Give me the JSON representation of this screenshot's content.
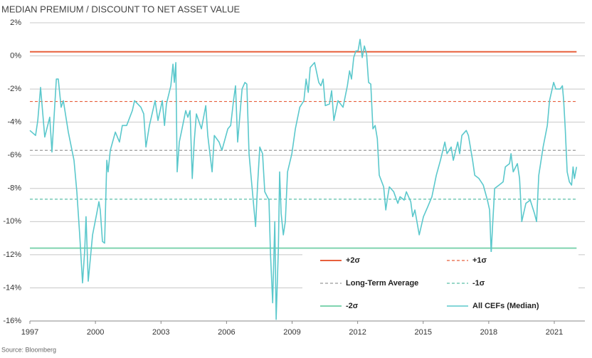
{
  "chart_data": {
    "type": "line",
    "title": "MEDIAN PREMIUM / DISCOUNT TO NET ASSET VALUE",
    "source": "Source: Bloomberg",
    "xlim": [
      1997,
      2022.4
    ],
    "xticks": [
      1997,
      2000,
      2003,
      2006,
      2009,
      2012,
      2015,
      2018,
      2021
    ],
    "ylim": [
      -16,
      2
    ],
    "yticks": [
      {
        "value": -16,
        "label": "-16%"
      },
      {
        "value": -14,
        "label": "-14%"
      },
      {
        "value": -12,
        "label": "-12%"
      },
      {
        "value": -10,
        "label": "-10%"
      },
      {
        "value": -8,
        "label": "-8%"
      },
      {
        "value": -6,
        "label": "-6%"
      },
      {
        "value": -4,
        "label": "-4%"
      },
      {
        "value": -2,
        "label": "-2%"
      },
      {
        "value": 0,
        "label": "0%"
      },
      {
        "value": 2,
        "label": "2%"
      }
    ],
    "grid": true,
    "reference_lines": [
      {
        "name": "+2σ",
        "value": 0.25,
        "color": "#e8603c",
        "dashed": false
      },
      {
        "name": "+1σ",
        "value": -2.75,
        "color": "#e8603c",
        "dashed": true
      },
      {
        "name": "Long-Term Average",
        "value": -5.7,
        "color": "#999999",
        "dashed": true
      },
      {
        "name": "-1σ",
        "value": -8.65,
        "color": "#5bbfa8",
        "dashed": true
      },
      {
        "name": "-2σ",
        "value": -11.6,
        "color": "#7fd4b0",
        "dashed": false
      }
    ],
    "series": [
      {
        "name": "All CEFs (Median)",
        "color": "#5bc8cc",
        "x": [
          1997.0,
          1997.26,
          1997.36,
          1997.49,
          1997.68,
          1997.91,
          1998.01,
          1998.21,
          1998.3,
          1998.43,
          1998.53,
          1998.76,
          1999.02,
          1999.15,
          1999.28,
          1999.41,
          1999.51,
          1999.57,
          1999.67,
          1999.87,
          2000.06,
          2000.16,
          2000.22,
          2000.32,
          2000.42,
          2000.52,
          2000.58,
          2000.68,
          2000.91,
          2001.1,
          2001.23,
          2001.43,
          2001.69,
          2001.79,
          2002.08,
          2002.21,
          2002.31,
          2002.47,
          2002.73,
          2002.86,
          2003.06,
          2003.16,
          2003.25,
          2003.45,
          2003.55,
          2003.61,
          2003.68,
          2003.74,
          2003.84,
          2004.04,
          2004.13,
          2004.23,
          2004.33,
          2004.43,
          2004.52,
          2004.62,
          2004.85,
          2005.05,
          2005.14,
          2005.34,
          2005.44,
          2005.66,
          2005.79,
          2006.06,
          2006.19,
          2006.32,
          2006.41,
          2006.51,
          2006.71,
          2006.84,
          2006.93,
          2007.03,
          2007.13,
          2007.33,
          2007.42,
          2007.52,
          2007.65,
          2007.75,
          2007.94,
          2008.01,
          2008.11,
          2008.21,
          2008.27,
          2008.37,
          2008.43,
          2008.5,
          2008.6,
          2008.69,
          2008.79,
          2008.99,
          2009.15,
          2009.35,
          2009.54,
          2009.64,
          2009.74,
          2009.83,
          2010.03,
          2010.22,
          2010.32,
          2010.42,
          2010.52,
          2010.71,
          2010.81,
          2010.91,
          2011.1,
          2011.33,
          2011.53,
          2011.63,
          2011.72,
          2011.82,
          2011.92,
          2012.02,
          2012.11,
          2012.21,
          2012.31,
          2012.41,
          2012.5,
          2012.6,
          2012.7,
          2012.8,
          2012.9,
          2012.99,
          2013.19,
          2013.29,
          2013.35,
          2013.45,
          2013.65,
          2013.84,
          2013.94,
          2014.13,
          2014.23,
          2014.43,
          2014.52,
          2014.62,
          2014.82,
          2015.01,
          2015.21,
          2015.4,
          2015.6,
          2015.79,
          2015.99,
          2016.09,
          2016.28,
          2016.38,
          2016.58,
          2016.67,
          2016.77,
          2016.97,
          2017.07,
          2017.26,
          2017.36,
          2017.55,
          2017.75,
          2017.94,
          2018.04,
          2018.11,
          2018.17,
          2018.27,
          2018.47,
          2018.66,
          2018.76,
          2018.95,
          2019.02,
          2019.12,
          2019.31,
          2019.41,
          2019.51,
          2019.7,
          2019.9,
          2020.09,
          2020.19,
          2020.29,
          2020.49,
          2020.68,
          2020.78,
          2020.97,
          2021.07,
          2021.27,
          2021.37,
          2021.43,
          2021.5,
          2021.59,
          2021.69,
          2021.79,
          2021.86,
          2021.92,
          2022.02
        ],
        "values": [
          -4.5,
          -4.8,
          -3.9,
          -1.9,
          -4.9,
          -3.7,
          -5.8,
          -1.4,
          -1.4,
          -3.1,
          -2.7,
          -4.6,
          -6.3,
          -8.2,
          -10.8,
          -13.7,
          -11.7,
          -9.7,
          -13.6,
          -10.8,
          -9.5,
          -8.8,
          -9.3,
          -11.2,
          -11.3,
          -6.3,
          -7.0,
          -5.7,
          -4.6,
          -5.2,
          -4.2,
          -4.2,
          -3.3,
          -2.7,
          -3.1,
          -3.5,
          -5.5,
          -4.2,
          -2.7,
          -3.9,
          -2.7,
          -4.2,
          -2.9,
          -1.8,
          -0.5,
          -1.6,
          -0.4,
          -7.0,
          -5.2,
          -3.9,
          -3.3,
          -3.7,
          -3.3,
          -7.4,
          -5.2,
          -3.5,
          -4.4,
          -3.0,
          -4.8,
          -7.0,
          -4.8,
          -5.2,
          -5.7,
          -4.4,
          -4.2,
          -2.7,
          -1.8,
          -5.2,
          -2.0,
          -1.6,
          -1.7,
          -5.9,
          -7.4,
          -10.3,
          -7.8,
          -5.5,
          -5.9,
          -8.2,
          -8.7,
          -11.9,
          -14.9,
          -10.0,
          -15.9,
          -11.7,
          -7.0,
          -9.5,
          -10.8,
          -10.0,
          -7.0,
          -5.9,
          -4.4,
          -3.1,
          -2.7,
          -1.4,
          -2.2,
          -0.7,
          -0.4,
          -1.6,
          -1.8,
          -1.4,
          -3.0,
          -2.9,
          -2.1,
          -3.9,
          -2.7,
          -3.1,
          -1.8,
          -0.9,
          -1.4,
          -0.1,
          0.3,
          0.3,
          1.0,
          -0.1,
          0.6,
          0.1,
          -1.6,
          -1.7,
          -4.4,
          -4.2,
          -5.0,
          -7.2,
          -7.9,
          -9.3,
          -8.7,
          -7.9,
          -8.2,
          -8.9,
          -8.5,
          -8.7,
          -8.2,
          -8.8,
          -9.7,
          -9.3,
          -10.8,
          -9.7,
          -9.1,
          -8.5,
          -7.2,
          -6.3,
          -5.2,
          -5.9,
          -5.5,
          -6.3,
          -5.2,
          -5.9,
          -4.8,
          -4.5,
          -4.8,
          -6.3,
          -7.2,
          -7.4,
          -7.8,
          -8.7,
          -9.3,
          -11.9,
          -10.4,
          -8.0,
          -7.8,
          -7.6,
          -6.7,
          -6.5,
          -5.9,
          -7.0,
          -6.5,
          -7.4,
          -10.0,
          -8.9,
          -8.7,
          -9.5,
          -10.0,
          -7.2,
          -5.5,
          -4.2,
          -2.7,
          -1.6,
          -2.0,
          -2.0,
          -1.8,
          -2.7,
          -4.4,
          -7.0,
          -7.6,
          -7.8,
          -6.7,
          -7.4,
          -6.7
        ]
      }
    ]
  }
}
